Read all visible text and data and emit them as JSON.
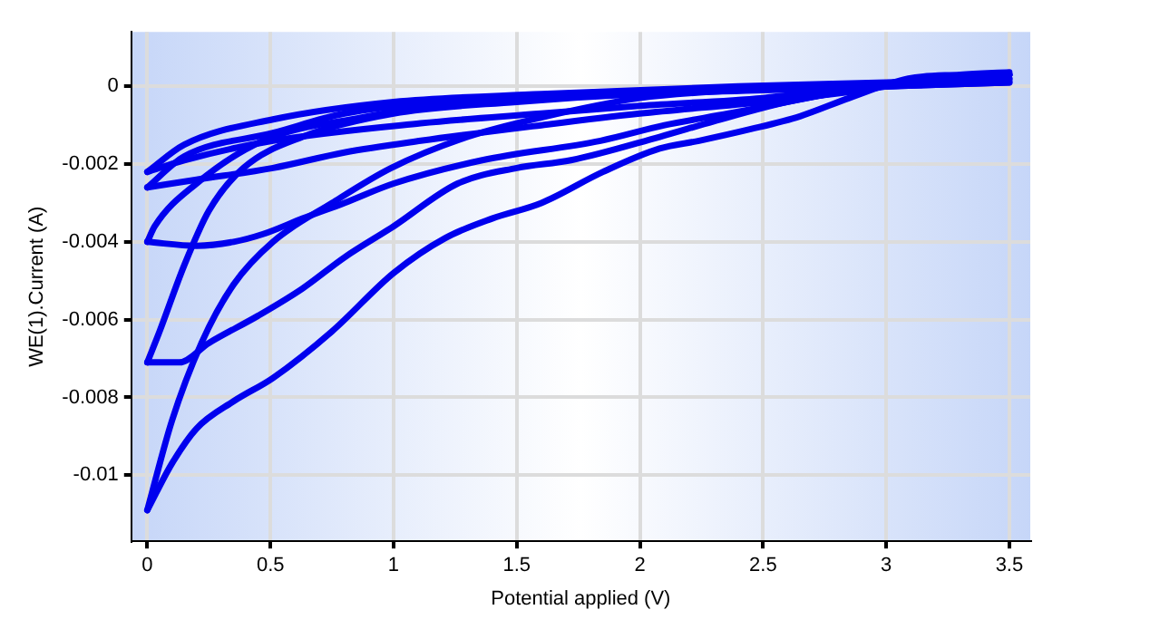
{
  "chart_data": {
    "type": "line",
    "xlabel": "Potential applied (V)",
    "ylabel": "WE(1).Current (A)",
    "xlim": [
      -0.065,
      3.585
    ],
    "ylim": [
      -0.0117,
      0.0014
    ],
    "xticks": [
      0,
      0.5,
      1,
      1.5,
      2,
      2.5,
      3,
      3.5
    ],
    "yticks": [
      -0.01,
      -0.008,
      -0.006,
      -0.004,
      -0.002,
      0
    ],
    "grid": true,
    "legend": false,
    "marker": "none",
    "line_style": "solid",
    "series": [
      {
        "color": "#0000ee",
        "x": [
          0,
          0.15,
          0.51,
          1.11,
          1.6,
          2.0,
          2.5,
          2.9,
          3.2,
          3.5
        ],
        "values": [
          -0.0022,
          -0.0019,
          -0.0014,
          -0.00095,
          -0.0007,
          -0.0005,
          -0.0003,
          0,
          0.0002,
          0.0003
        ]
      },
      {
        "color": "#0000ee",
        "x": [
          0,
          0.15,
          0.51,
          1.0,
          1.6,
          2.4,
          3.0,
          3.5
        ],
        "values": [
          -0.0022,
          -0.0015,
          -0.00085,
          -0.0004,
          -0.0002,
          0,
          0.0001,
          0.0002
        ]
      },
      {
        "color": "#0000ee",
        "x": [
          0,
          0.2,
          0.51,
          0.8,
          1.11,
          1.6,
          2.0,
          2.5,
          2.9,
          3.2,
          3.5
        ],
        "values": [
          -0.0026,
          -0.0024,
          -0.0021,
          -0.0017,
          -0.0014,
          -0.001,
          -0.0007,
          -0.0004,
          -0.0001,
          0.0002,
          0.0003
        ]
      },
      {
        "color": "#0000ee",
        "x": [
          0,
          0.15,
          0.51,
          0.8,
          1.2,
          1.8,
          2.4,
          3.0,
          3.5
        ],
        "values": [
          -0.0026,
          -0.0018,
          -0.0012,
          -0.0007,
          -0.0004,
          -0.0002,
          -0.0001,
          0,
          0.0001
        ]
      },
      {
        "color": "#0000ee",
        "x": [
          0,
          0.2,
          0.35,
          0.47,
          0.63,
          0.8,
          1.0,
          1.36,
          1.84,
          2.1,
          2.36,
          2.85,
          3.2,
          3.5
        ],
        "values": [
          -0.004,
          -0.0041,
          -0.004,
          -0.0038,
          -0.0034,
          -0.003,
          -0.0025,
          -0.0019,
          -0.0014,
          -0.001,
          -0.0007,
          -0.0001,
          0.0002,
          0.0003
        ]
      },
      {
        "color": "#0000ee",
        "x": [
          0,
          0.03,
          0.2,
          0.47,
          0.87,
          1.3,
          1.8,
          2.4,
          3.0,
          3.5
        ],
        "values": [
          -0.004,
          -0.0036,
          -0.0025,
          -0.0014,
          -0.0008,
          -0.0004,
          -0.0002,
          -0.0001,
          0,
          0.0001
        ]
      },
      {
        "color": "#0000ee",
        "x": [
          0,
          0.13,
          0.25,
          0.45,
          0.63,
          0.8,
          1.0,
          1.26,
          1.5,
          1.72,
          2.08,
          2.3,
          2.6,
          2.96,
          3.2,
          3.5
        ],
        "values": [
          -0.0071,
          -0.0071,
          -0.0066,
          -0.0059,
          -0.0052,
          -0.0044,
          -0.0036,
          -0.0025,
          -0.0021,
          -0.0019,
          -0.0013,
          -0.0009,
          -0.0004,
          0,
          0.0002,
          0.0003
        ]
      },
      {
        "color": "#0000ee",
        "x": [
          0,
          0.05,
          0.15,
          0.25,
          0.39,
          0.63,
          1.0,
          1.5,
          2.0,
          2.5,
          3.0,
          3.5
        ],
        "values": [
          -0.0071,
          -0.0063,
          -0.0046,
          -0.0032,
          -0.0021,
          -0.0013,
          -0.0007,
          -0.0004,
          -0.0002,
          -0.0001,
          0,
          0.00015
        ]
      },
      {
        "color": "#0000ee",
        "x": [
          0,
          0.1,
          0.2,
          0.35,
          0.51,
          0.75,
          1.0,
          1.21,
          1.4,
          1.6,
          1.85,
          2.08,
          2.24,
          2.45,
          2.65,
          2.85,
          3.09,
          3.3,
          3.5
        ],
        "values": [
          -0.0109,
          -0.0097,
          -0.0088,
          -0.0081,
          -0.0075,
          -0.0063,
          -0.0048,
          -0.0039,
          -0.0034,
          -0.003,
          -0.0022,
          -0.0016,
          -0.0014,
          -0.0011,
          -0.00077,
          -0.0003,
          0.0002,
          0.0003,
          0.00036
        ]
      },
      {
        "color": "#0000ee",
        "x": [
          0,
          0.1,
          0.22,
          0.35,
          0.51,
          0.75,
          0.99,
          1.3,
          1.6,
          2.0,
          2.4,
          2.8,
          3.2,
          3.5
        ],
        "values": [
          -0.0109,
          -0.0086,
          -0.0066,
          -0.0051,
          -0.004,
          -0.003,
          -0.0021,
          -0.0013,
          -0.0008,
          -0.0003,
          -0.0001,
          0,
          0.0001,
          0.0002
        ]
      }
    ]
  }
}
